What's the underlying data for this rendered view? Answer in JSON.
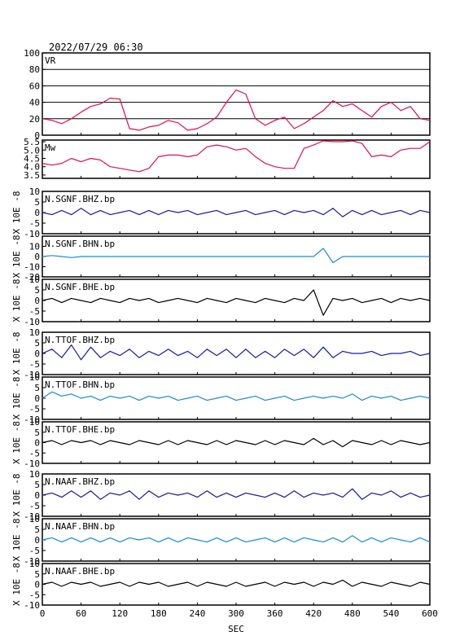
{
  "header": {
    "datetime": "2022/07/29 06:30"
  },
  "x_axis": {
    "label": "SEC",
    "range": [
      0,
      600
    ],
    "ticks": [
      0,
      60,
      120,
      180,
      240,
      300,
      360,
      420,
      480,
      540,
      600
    ]
  },
  "colors": {
    "vr_mw": "#e0104a",
    "bhz": "#1a1aa0",
    "bhn": "#1f8ad6",
    "bhe": "#000000",
    "frame": "#000000"
  },
  "chart_data": {
    "type": "line",
    "x": [
      0,
      15,
      30,
      45,
      60,
      75,
      90,
      105,
      120,
      135,
      150,
      165,
      180,
      195,
      210,
      225,
      240,
      255,
      270,
      285,
      300,
      315,
      330,
      345,
      360,
      375,
      390,
      405,
      420,
      435,
      450,
      465,
      480,
      495,
      510,
      525,
      540,
      555,
      570,
      585,
      600
    ],
    "panels": [
      {
        "id": "vr",
        "label": "VR",
        "ylim": [
          0,
          100
        ],
        "ytick_labels": [
          "0",
          "20",
          "40",
          "60",
          "80",
          "100"
        ],
        "gridlines": [
          20,
          40,
          60,
          80
        ],
        "values": [
          20,
          18,
          14,
          20,
          28,
          35,
          38,
          45,
          44,
          8,
          6,
          10,
          12,
          18,
          15,
          6,
          8,
          14,
          22,
          40,
          55,
          50,
          20,
          12,
          18,
          22,
          8,
          14,
          22,
          30,
          42,
          35,
          38,
          30,
          22,
          35,
          40,
          30,
          35,
          20,
          18
        ]
      },
      {
        "id": "mw",
        "label": "Mw",
        "ylim": [
          3.3,
          5.6
        ],
        "ytick_labels": [
          "3.5",
          "4.0",
          "4.5",
          "5.0",
          "5.5"
        ],
        "values": [
          4.2,
          4.1,
          4.2,
          4.5,
          4.3,
          4.5,
          4.4,
          4.0,
          3.9,
          3.8,
          3.7,
          3.9,
          4.6,
          4.7,
          4.7,
          4.6,
          4.7,
          5.2,
          5.3,
          5.2,
          5.0,
          5.1,
          4.6,
          4.2,
          4.0,
          3.9,
          3.9,
          5.1,
          5.3,
          5.6,
          5.5,
          5.5,
          5.6,
          5.4,
          4.6,
          4.7,
          4.6,
          5.0,
          5.1,
          5.1,
          5.5
        ]
      },
      {
        "id": "sgnf-bhz",
        "label": "N.SGNF.BHZ.bp",
        "color": "bhz",
        "ylim": [
          -10,
          10
        ],
        "ytick_labels": [
          "10",
          "5",
          "0",
          "-5",
          "-10"
        ],
        "ylabel": "X 10E -8",
        "values": [
          0,
          -1,
          1,
          -1,
          2,
          -1,
          1,
          -1,
          0,
          1,
          -1,
          1,
          -1,
          1,
          0,
          1,
          -1,
          0,
          1,
          -1,
          0,
          1,
          -1,
          0,
          1,
          -1,
          1,
          0,
          1,
          -1,
          2,
          -2,
          1,
          -1,
          1,
          -1,
          0,
          1,
          -1,
          1,
          0
        ]
      },
      {
        "id": "sgnf-bhn",
        "label": "N.SGNF.BHN.bp",
        "color": "bhn",
        "ylim": [
          -20,
          20
        ],
        "ytick_labels": [
          "10",
          "0",
          "-10",
          "-20"
        ],
        "ylabel": "X 10E -8",
        "values": [
          0,
          1,
          0,
          -1,
          0,
          0,
          0,
          0,
          0,
          0,
          0,
          0,
          0,
          0,
          0,
          0,
          0,
          0,
          0,
          0,
          0,
          0,
          0,
          0,
          0,
          0,
          0,
          0,
          0,
          8,
          -6,
          0,
          0,
          0,
          0,
          0,
          0,
          0,
          0,
          0,
          0
        ]
      },
      {
        "id": "sgnf-bhe",
        "label": "N.SGNF.BHE.bp",
        "color": "bhe",
        "ylim": [
          -10,
          10
        ],
        "ytick_labels": [
          "10",
          "5",
          "0",
          "-5",
          "-10"
        ],
        "ylabel": "X 10E -8",
        "values": [
          0,
          1,
          -1,
          1,
          0,
          -1,
          1,
          0,
          -1,
          1,
          0,
          1,
          -1,
          0,
          1,
          0,
          -1,
          1,
          0,
          -1,
          1,
          0,
          -1,
          1,
          0,
          -1,
          1,
          0,
          5,
          -7,
          1,
          0,
          1,
          -1,
          0,
          1,
          -1,
          1,
          0,
          1,
          0
        ]
      },
      {
        "id": "ttof-bhz",
        "label": "N.TTOF.BHZ.bp",
        "color": "bhz",
        "ylim": [
          -10,
          10
        ],
        "ytick_labels": [
          "10",
          "5",
          "0",
          "-5",
          "-10"
        ],
        "ylabel": "X 10E -8",
        "values": [
          0,
          2,
          -2,
          4,
          -3,
          3,
          -2,
          1,
          -1,
          2,
          -2,
          1,
          -1,
          2,
          -1,
          1,
          -2,
          2,
          -1,
          2,
          -2,
          2,
          -2,
          1,
          -2,
          2,
          -1,
          2,
          -2,
          3,
          -2,
          1,
          0,
          0,
          1,
          -1,
          0,
          0,
          1,
          -1,
          0
        ]
      },
      {
        "id": "ttof-bhn",
        "label": "N.TTOF.BHN.bp",
        "color": "bhn",
        "ylim": [
          -10,
          10
        ],
        "ytick_labels": [
          "10",
          "5",
          "0",
          "-5",
          "-10"
        ],
        "ylabel": "X 10E -8",
        "values": [
          0,
          3,
          1,
          2,
          0,
          1,
          -1,
          1,
          0,
          1,
          -1,
          1,
          0,
          1,
          -1,
          0,
          1,
          -1,
          0,
          1,
          -1,
          0,
          1,
          -1,
          0,
          1,
          -1,
          0,
          1,
          0,
          1,
          0,
          2,
          -1,
          1,
          0,
          1,
          -1,
          0,
          1,
          0
        ]
      },
      {
        "id": "ttof-bhe",
        "label": "N.TTOF.BHE.bp",
        "color": "bhe",
        "ylim": [
          -10,
          10
        ],
        "ytick_labels": [
          "10",
          "5",
          "0",
          "-5",
          "-10"
        ],
        "ylabel": "X 10E -8",
        "values": [
          0,
          1,
          -1,
          1,
          0,
          1,
          -1,
          1,
          0,
          -1,
          1,
          0,
          -1,
          1,
          -1,
          1,
          0,
          -1,
          1,
          -1,
          1,
          0,
          -1,
          1,
          -1,
          1,
          0,
          -1,
          2,
          -1,
          1,
          -2,
          1,
          0,
          -1,
          1,
          -1,
          1,
          0,
          -1,
          0
        ]
      },
      {
        "id": "naaf-bhz",
        "label": "N.NAAF.BHZ.bp",
        "color": "bhz",
        "ylim": [
          -10,
          10
        ],
        "ytick_labels": [
          "10",
          "5",
          "0",
          "-5",
          "-10"
        ],
        "ylabel": "X 10E -8",
        "values": [
          0,
          1,
          -1,
          2,
          -1,
          2,
          -2,
          1,
          0,
          2,
          -2,
          2,
          -1,
          1,
          0,
          1,
          -1,
          2,
          -1,
          1,
          -1,
          1,
          0,
          -1,
          1,
          -1,
          2,
          -1,
          1,
          0,
          1,
          -1,
          3,
          -2,
          1,
          0,
          2,
          -1,
          1,
          -1,
          0
        ]
      },
      {
        "id": "naaf-bhn",
        "label": "N.NAAF.BHN.bp",
        "color": "bhn",
        "ylim": [
          -10,
          10
        ],
        "ytick_labels": [
          "10",
          "5",
          "0",
          "-5",
          "-10"
        ],
        "ylabel": "X 10E -8",
        "values": [
          0,
          1,
          -1,
          1,
          -1,
          1,
          -1,
          1,
          -1,
          1,
          0,
          1,
          -1,
          1,
          -1,
          1,
          0,
          -1,
          1,
          -1,
          1,
          -1,
          0,
          1,
          -1,
          1,
          -1,
          1,
          0,
          -1,
          1,
          -1,
          2,
          -1,
          1,
          -1,
          1,
          0,
          -1,
          1,
          -1
        ]
      },
      {
        "id": "naaf-bhe",
        "label": "N.NAAF.BHE.bp",
        "color": "bhe",
        "ylim": [
          -10,
          10
        ],
        "ytick_labels": [
          "10",
          "5",
          "0",
          "-5",
          "-10"
        ],
        "ylabel": "X 10E -8",
        "values": [
          0,
          1,
          -1,
          1,
          0,
          1,
          -1,
          0,
          1,
          -1,
          1,
          0,
          1,
          -1,
          0,
          1,
          -1,
          1,
          0,
          -1,
          1,
          -1,
          0,
          1,
          -1,
          1,
          0,
          1,
          -1,
          1,
          0,
          2,
          -1,
          1,
          0,
          -1,
          1,
          0,
          -1,
          1,
          0
        ]
      }
    ]
  }
}
